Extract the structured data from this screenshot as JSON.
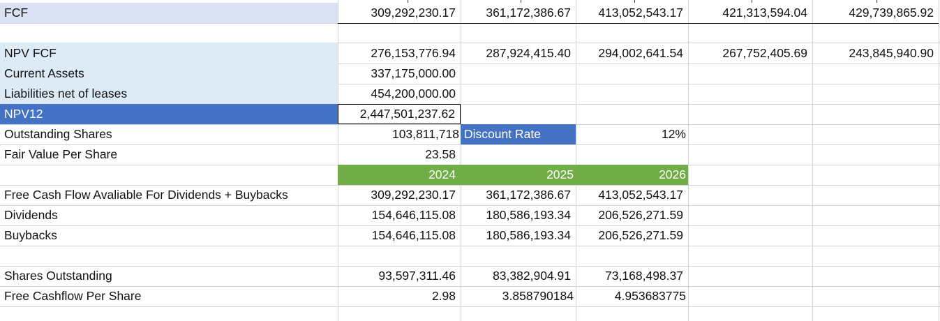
{
  "sheet": {
    "rows": [
      {
        "label": "FCF",
        "values": [
          "309,292,230.17",
          "361,172,386.67",
          "413,052,543.17",
          "421,313,594.04",
          "429,739,865.92"
        ]
      },
      {
        "label": "NPV FCF",
        "values": [
          "276,153,776.94",
          "287,924,415.40",
          "294,002,641.54",
          "267,752,405.69",
          "243,845,940.90"
        ]
      },
      {
        "label": "Current Assets",
        "values": [
          "337,175,000.00"
        ]
      },
      {
        "label": "Liabilities net of leases",
        "values": [
          "454,200,000.00"
        ]
      },
      {
        "label": "NPV12",
        "values": [
          "2,447,501,237.62"
        ]
      },
      {
        "label": "Outstanding Shares",
        "values": [
          "103,811,718"
        ],
        "extra_label": "Discount Rate",
        "extra_value": "12%"
      },
      {
        "label": "Fair Value Per Share",
        "values": [
          "23.58"
        ]
      },
      {
        "label": "",
        "values": [
          "2024",
          "2025",
          "2026"
        ]
      },
      {
        "label": "Free Cash Flow Avaliable For Dividends + Buybacks",
        "values": [
          "309,292,230.17",
          "361,172,386.67",
          "413,052,543.17"
        ]
      },
      {
        "label": "Dividends",
        "values": [
          "154,646,115.08",
          "180,586,193.34",
          "206,526,271.59"
        ]
      },
      {
        "label": "Buybacks",
        "values": [
          "154,646,115.08",
          "180,586,193.34",
          "206,526,271.59"
        ]
      },
      {
        "label": "Shares Outstanding",
        "values": [
          "93,597,311.46",
          "83,382,904.91",
          "73,168,498.37"
        ]
      },
      {
        "label": "Free Cashflow Per Share",
        "values": [
          "2.98",
          "3.858790184",
          "4.953683775"
        ]
      }
    ]
  },
  "colors": {
    "lavender": "#d9e1f2",
    "light_blue": "#ddebf7",
    "header_blue": "#4472c4",
    "header_green": "#70ad47",
    "gridline": "#d4d4d4"
  }
}
